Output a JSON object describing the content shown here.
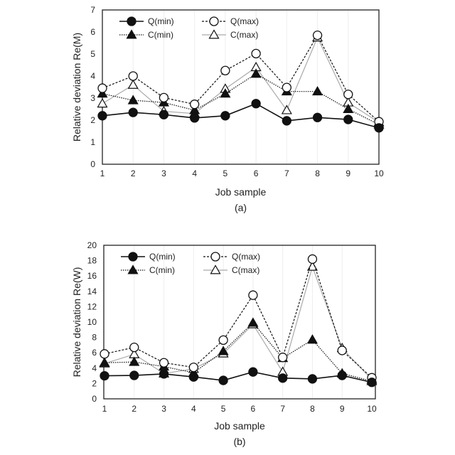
{
  "chart_data": [
    {
      "type": "line",
      "panel_label": "(a)",
      "xlabel": "Job sample",
      "ylabel": "Relative deviation Re(M)",
      "x": [
        1,
        2,
        3,
        4,
        5,
        6,
        7,
        8,
        9,
        10
      ],
      "x_tick_labels": [
        "1",
        "2",
        "3",
        "4",
        "5",
        "6",
        "7",
        "8",
        "9",
        "10"
      ],
      "ylim": [
        0,
        7
      ],
      "y_ticks": [
        0,
        1,
        2,
        3,
        4,
        5,
        6,
        7
      ],
      "y_tick_labels": [
        "0",
        "1",
        "2",
        "3",
        "4",
        "5",
        "6",
        "7"
      ],
      "legend_position": "top-left",
      "series": [
        {
          "name": "Q(min)",
          "style": "solid",
          "marker": "filled-circle",
          "color": "#111111",
          "values": [
            2.2,
            2.35,
            2.25,
            2.1,
            2.2,
            2.75,
            1.97,
            2.12,
            2.03,
            1.65
          ]
        },
        {
          "name": "Q(max)",
          "style": "dashed",
          "marker": "open-circle",
          "color": "#111111",
          "values": [
            3.45,
            4.0,
            3.02,
            2.72,
            4.25,
            5.02,
            3.48,
            5.85,
            3.17,
            1.93
          ]
        },
        {
          "name": "C(min)",
          "style": "dotted",
          "marker": "filled-triangle",
          "color": "#111111",
          "values": [
            3.2,
            2.9,
            2.8,
            2.45,
            3.2,
            4.1,
            3.3,
            3.3,
            2.5,
            1.8
          ]
        },
        {
          "name": "C(max)",
          "style": "solid-light",
          "marker": "open-triangle",
          "color": "#aaaaaa",
          "values": [
            2.75,
            3.6,
            2.4,
            2.3,
            3.42,
            4.4,
            2.45,
            5.75,
            2.8,
            1.9
          ]
        }
      ]
    },
    {
      "type": "line",
      "panel_label": "(b)",
      "xlabel": "Job sample",
      "ylabel": "Relative deviation Re(W)",
      "x": [
        1,
        2,
        3,
        4,
        5,
        6,
        7,
        8,
        9,
        10
      ],
      "x_tick_labels": [
        "1",
        "2",
        "3",
        "4",
        "5",
        "6",
        "7",
        "8",
        "9",
        "10"
      ],
      "ylim": [
        0,
        20
      ],
      "y_ticks": [
        0,
        2,
        4,
        6,
        8,
        10,
        12,
        14,
        16,
        18,
        20
      ],
      "y_tick_labels": [
        "0",
        "2",
        "4",
        "6",
        "8",
        "10",
        "12",
        "14",
        "16",
        "18",
        "20"
      ],
      "legend_position": "top-left",
      "series": [
        {
          "name": "Q(min)",
          "style": "solid",
          "marker": "filled-circle",
          "color": "#111111",
          "values": [
            3.0,
            3.05,
            3.25,
            2.85,
            2.4,
            3.5,
            2.7,
            2.6,
            3.05,
            2.15
          ]
        },
        {
          "name": "Q(max)",
          "style": "dashed",
          "marker": "open-circle",
          "color": "#111111",
          "values": [
            5.85,
            6.7,
            4.7,
            4.1,
            7.65,
            13.5,
            5.4,
            18.2,
            6.3,
            2.75
          ]
        },
        {
          "name": "C(min)",
          "style": "dotted",
          "marker": "filled-triangle",
          "color": "#111111",
          "values": [
            4.7,
            4.8,
            4.2,
            3.4,
            6.2,
            9.9,
            5.3,
            7.7,
            3.3,
            2.3
          ]
        },
        {
          "name": "C(max)",
          "style": "solid-light",
          "marker": "open-triangle",
          "color": "#aaaaaa",
          "values": [
            4.6,
            5.8,
            3.3,
            3.9,
            5.9,
            9.7,
            3.5,
            17.2,
            6.6,
            2.5
          ]
        }
      ]
    }
  ]
}
